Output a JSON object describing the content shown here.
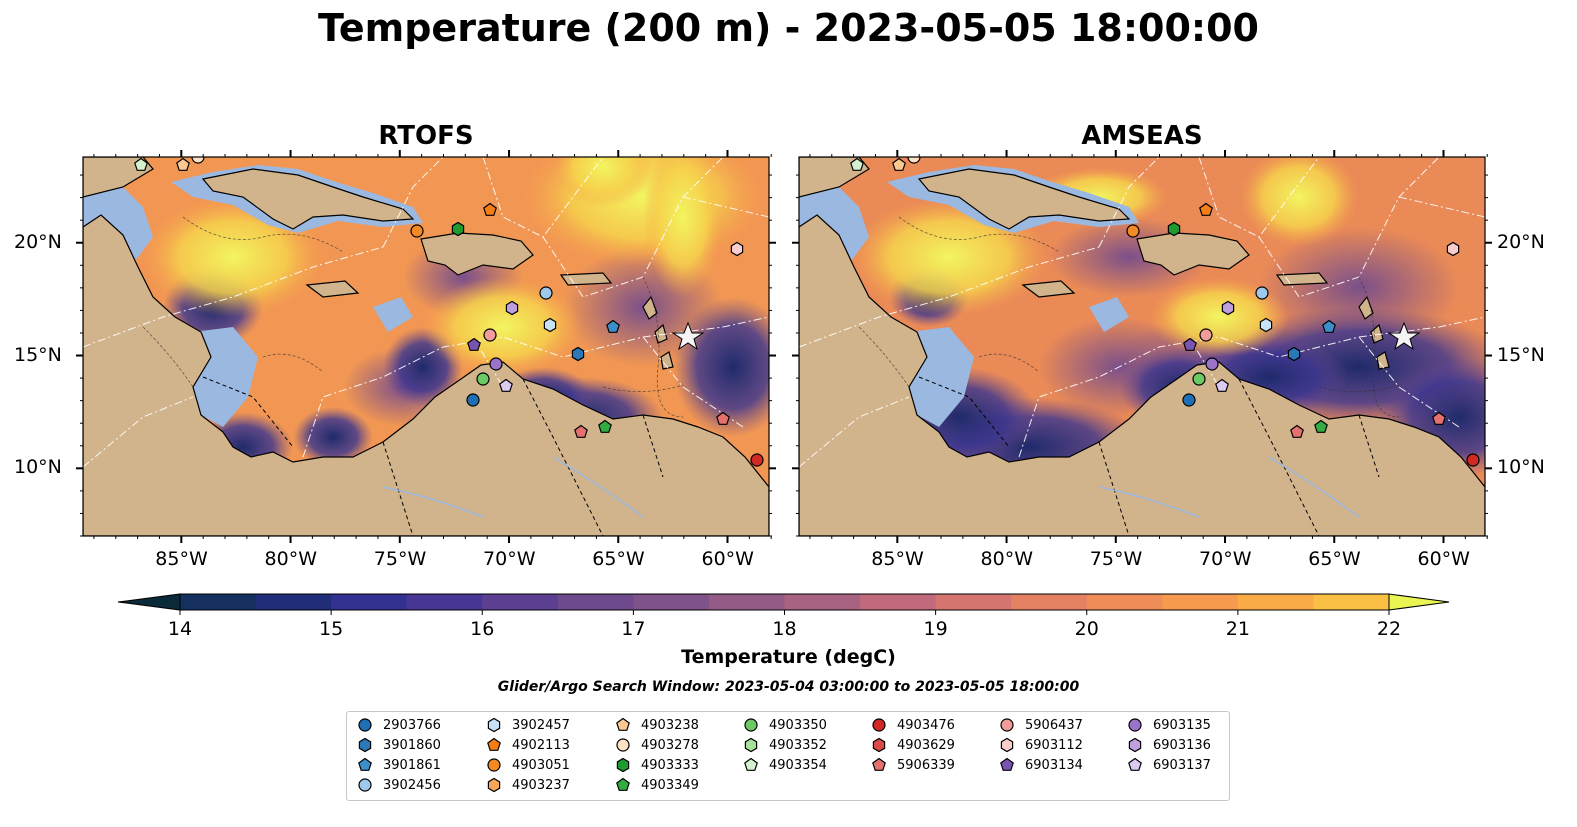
{
  "title": "Temperature (200 m) - 2023-05-05 18:00:00",
  "panels": [
    {
      "title": "RTOFS"
    },
    {
      "title": "AMSEAS"
    }
  ],
  "axes": {
    "lon_ticks": [
      "85°W",
      "80°W",
      "75°W",
      "70°W",
      "65°W",
      "60°W"
    ],
    "lat_ticks": [
      "20°N",
      "15°N",
      "10°N"
    ]
  },
  "colorbar": {
    "label": "Temperature (degC)",
    "min": 14,
    "max": 22,
    "step": 0.5,
    "ticks": [
      "14",
      "15",
      "16",
      "17",
      "18",
      "19",
      "20",
      "21",
      "22"
    ],
    "colors": [
      "#0a2a3a",
      "#15305e",
      "#202e7a",
      "#33318f",
      "#473694",
      "#5c3f91",
      "#6e4a8c",
      "#7f5389",
      "#945b86",
      "#a86383",
      "#c06a7c",
      "#d47570",
      "#e48163",
      "#ee8d58",
      "#f59a4f",
      "#f9ab48",
      "#f9c045",
      "#f2dc4c",
      "#eaf553"
    ]
  },
  "search_window": "Glider/Argo Search Window: 2023-05-04 03:00:00 to 2023-05-05 18:00:00",
  "legend": [
    {
      "id": "2903766",
      "marker": "circle",
      "color": "#1f6fb4"
    },
    {
      "id": "3901860",
      "marker": "hexagon",
      "color": "#2a78b8"
    },
    {
      "id": "3901861",
      "marker": "pentagon",
      "color": "#3d8fc8"
    },
    {
      "id": "3902456",
      "marker": "circle",
      "color": "#9ec9ec"
    },
    {
      "id": "3902457",
      "marker": "hexagon",
      "color": "#c6e2f6"
    },
    {
      "id": "4902113",
      "marker": "pentagon",
      "color": "#f57e16"
    },
    {
      "id": "4903051",
      "marker": "circle",
      "color": "#f58a24"
    },
    {
      "id": "4903237",
      "marker": "hexagon",
      "color": "#f9a85a"
    },
    {
      "id": "4903238",
      "marker": "pentagon",
      "color": "#fbc891"
    },
    {
      "id": "4903278",
      "marker": "circle",
      "color": "#fde2c5"
    },
    {
      "id": "4903333",
      "marker": "hexagon",
      "color": "#1f9a2e"
    },
    {
      "id": "4903349",
      "marker": "pentagon",
      "color": "#33ad3f"
    },
    {
      "id": "4903350",
      "marker": "circle",
      "color": "#6cc963"
    },
    {
      "id": "4903352",
      "marker": "hexagon",
      "color": "#a7e29c"
    },
    {
      "id": "4903354",
      "marker": "pentagon",
      "color": "#d4f2cf"
    },
    {
      "id": "4903476",
      "marker": "circle",
      "color": "#d12a26"
    },
    {
      "id": "4903629",
      "marker": "hexagon",
      "color": "#d94a48"
    },
    {
      "id": "5906339",
      "marker": "pentagon",
      "color": "#e4716e"
    },
    {
      "id": "5906437",
      "marker": "circle",
      "color": "#f09c9a"
    },
    {
      "id": "6903112",
      "marker": "hexagon",
      "color": "#f9cdcc"
    },
    {
      "id": "6903134",
      "marker": "pentagon",
      "color": "#7a54b1"
    },
    {
      "id": "6903135",
      "marker": "circle",
      "color": "#9b73c9"
    },
    {
      "id": "6903136",
      "marker": "hexagon",
      "color": "#bf9fe0"
    },
    {
      "id": "6903137",
      "marker": "pentagon",
      "color": "#dccaf0"
    }
  ]
}
